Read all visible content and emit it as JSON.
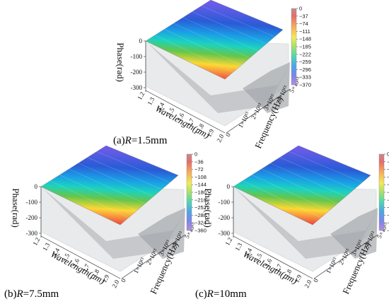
{
  "chart_data": [
    {
      "type": "surface3d",
      "caption_prefix": "(a)",
      "caption_param": "R",
      "caption_value": "=1.5mm",
      "z_axis_label": "Phase(rad)",
      "x_axis_label": "Wavelength(μm)",
      "y_axis_label": "Frequency(Hz)",
      "z_ticks": [
        "0",
        "-100",
        "-200",
        "-300"
      ],
      "x_ticks": [
        "1.2",
        "1.3",
        "1.4",
        "1.5",
        "1.6",
        "1.7",
        "1.8",
        "1.9",
        "2.0"
      ],
      "y_ticks": [
        "0",
        "1×10¹³",
        "2×10¹³",
        "3×10¹³",
        "4×10¹³",
        "5×10¹³"
      ],
      "colorbar_ticks": [
        "0",
        "−37",
        "−74",
        "−111",
        "−148",
        "−185",
        "−222",
        "−259",
        "−296",
        "−333",
        "−370"
      ],
      "zlim": [
        -370,
        0
      ],
      "xlim": [
        1.2,
        2.0
      ],
      "ylim": [
        0,
        50000000000000.0
      ]
    },
    {
      "type": "surface3d",
      "caption_prefix": "(b)",
      "caption_param": "R",
      "caption_value": "=7.5mm",
      "z_axis_label": "Phase(rad)",
      "x_axis_label": "Wavelength(μm)",
      "y_axis_label": "Frequency(Hz)",
      "z_ticks": [
        "0",
        "-100",
        "-200",
        "-300"
      ],
      "x_ticks": [
        "1.2",
        "1.3",
        "1.4",
        "1.5",
        "1.6",
        "1.7",
        "1.8",
        "1.9",
        "2.0"
      ],
      "y_ticks": [
        "0",
        "1×10¹³",
        "2×10¹³",
        "3×10¹³",
        "4×10¹³",
        "5×10¹³"
      ],
      "colorbar_ticks": [
        "0",
        "−36",
        "−72",
        "−108",
        "−144",
        "−180",
        "−216",
        "−252",
        "−288",
        "−324",
        "−360"
      ],
      "zlim": [
        -360,
        0
      ],
      "xlim": [
        1.2,
        2.0
      ],
      "ylim": [
        0,
        50000000000000.0
      ]
    },
    {
      "type": "surface3d",
      "caption_prefix": "(c)",
      "caption_param": "R",
      "caption_value": "=10mm",
      "z_axis_label": "Phase(rad)",
      "x_axis_label": "Wavelength(μm)",
      "y_axis_label": "Frequency(Hz)",
      "z_ticks": [
        "0",
        "-100",
        "-200",
        "-300"
      ],
      "x_ticks": [
        "1.2",
        "1.3",
        "1.4",
        "1.5",
        "1.6",
        "1.7",
        "1.8",
        "1.9",
        "2.0"
      ],
      "y_ticks": [
        "0",
        "1×10¹³",
        "2×10¹³",
        "3×10¹³",
        "4×10¹³",
        "5×10¹³"
      ],
      "colorbar_ticks": [
        "0",
        "−37",
        "−74",
        "−111",
        "−148",
        "−185",
        "−222",
        "−259",
        "−296",
        "−333",
        "−370"
      ],
      "zlim": [
        -370,
        0
      ],
      "xlim": [
        1.2,
        2.0
      ],
      "ylim": [
        0,
        50000000000000.0
      ]
    }
  ]
}
